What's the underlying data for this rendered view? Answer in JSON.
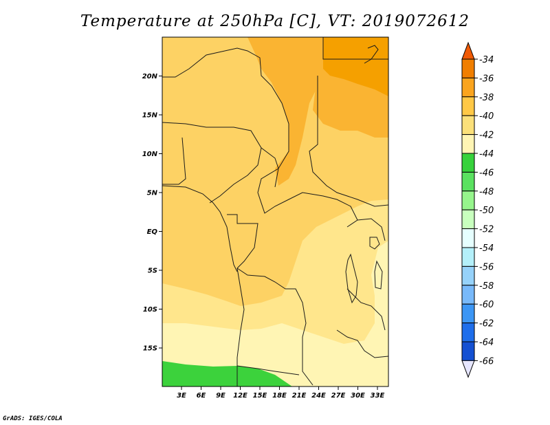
{
  "title": "Temperature at 250hPa [C], VT: 2019072612",
  "footer": "GrADS: IGES/COLA",
  "map": {
    "lat_labels": [
      {
        "label": "20N",
        "value": 20
      },
      {
        "label": "15N",
        "value": 15
      },
      {
        "label": "10N",
        "value": 10
      },
      {
        "label": "5N",
        "value": 5
      },
      {
        "label": "EQ",
        "value": 0
      },
      {
        "label": "5S",
        "value": -5
      },
      {
        "label": "10S",
        "value": -10
      },
      {
        "label": "15S",
        "value": -15
      }
    ],
    "lon_labels": [
      {
        "label": "3E",
        "value": 3
      },
      {
        "label": "6E",
        "value": 6
      },
      {
        "label": "9E",
        "value": 9
      },
      {
        "label": "12E",
        "value": 12
      },
      {
        "label": "15E",
        "value": 15
      },
      {
        "label": "18E",
        "value": 18
      },
      {
        "label": "21E",
        "value": 21
      },
      {
        "label": "24E",
        "value": 24
      },
      {
        "label": "27E",
        "value": 27
      },
      {
        "label": "30E",
        "value": 30
      },
      {
        "label": "33E",
        "value": 33
      }
    ]
  },
  "colorbar": {
    "labels": [
      "-34",
      "-36",
      "-38",
      "-40",
      "-42",
      "-44",
      "-46",
      "-48",
      "-50",
      "-52",
      "-54",
      "-56",
      "-58",
      "-60",
      "-62",
      "-64",
      "-66"
    ],
    "colors": [
      "#f05a05",
      "#f07e00",
      "#faa41e",
      "#ffc846",
      "#fbe07a",
      "#fff5b4",
      "#37d23c",
      "#5ae160",
      "#96f58c",
      "#c8ffbe",
      "#e6ffff",
      "#b4f0fa",
      "#96d2fa",
      "#78b9fa",
      "#3c96f5",
      "#1e6eeb",
      "#1450d2",
      "#0c3cbe",
      "#0a1464"
    ],
    "top_color": "#f05a05",
    "bottom_color": "#e6e6ff"
  },
  "field_colors": {
    "c36": "#f5a000",
    "c38": "#fab432",
    "c40": "#fdd264",
    "c42": "#ffe68c",
    "c44": "#fff5b4",
    "c46": "#3cd23c"
  }
}
